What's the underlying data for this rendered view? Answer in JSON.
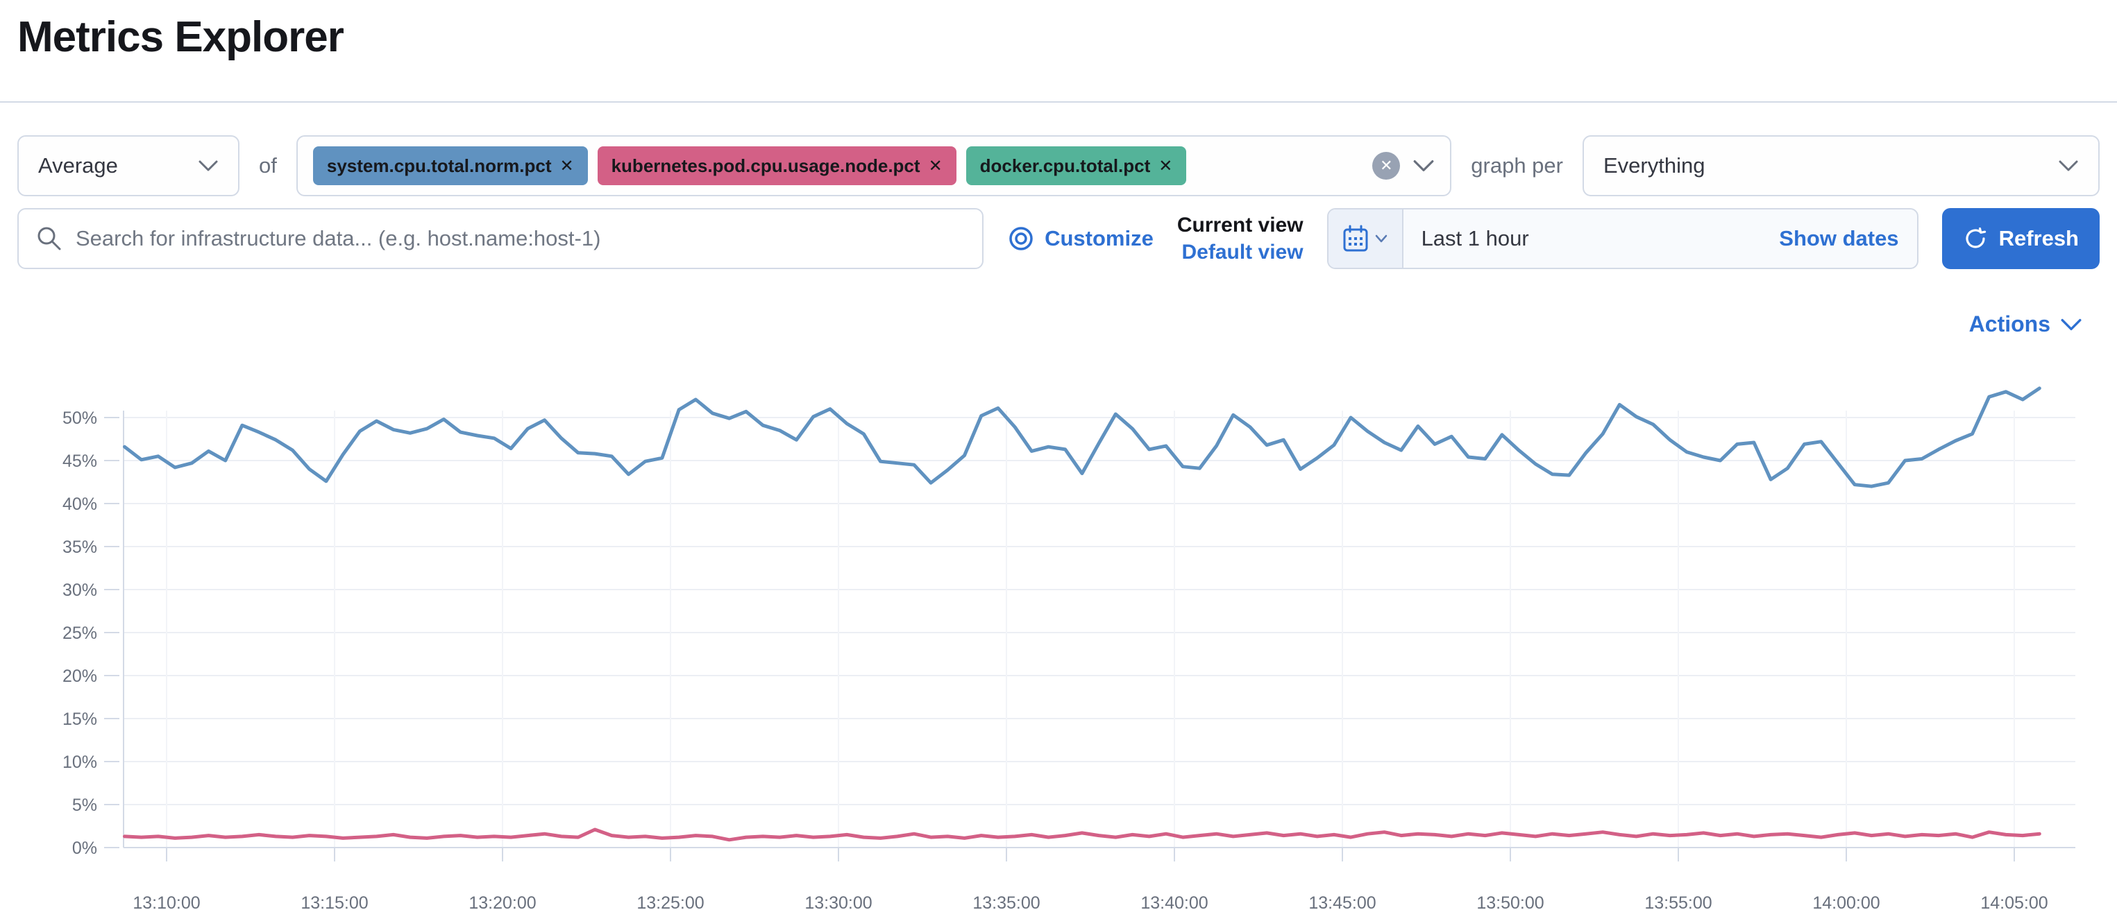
{
  "page_title": "Metrics Explorer",
  "toolbar": {
    "aggregation": {
      "value": "Average"
    },
    "of_label": "of",
    "metrics": [
      {
        "label": "system.cpu.total.norm.pct",
        "remove_label": "✕",
        "color": "#6092C0"
      },
      {
        "label": "kubernetes.pod.cpu.usage.node.pct",
        "remove_label": "✕",
        "color": "#D36086"
      },
      {
        "label": "docker.cpu.total.pct",
        "remove_label": "✕",
        "color": "#54B399"
      }
    ],
    "clear_all_label": "✕",
    "graph_per_label": "graph per",
    "group_by": {
      "value": "Everything"
    }
  },
  "search": {
    "placeholder": "Search for infrastructure data... (e.g. host.name:host-1)"
  },
  "view_controls": {
    "customize_label": "Customize",
    "current_view_label": "Current view",
    "default_view_label": "Default view"
  },
  "time_picker": {
    "range_label": "Last 1 hour",
    "show_dates_label": "Show dates",
    "refresh_label": "Refresh"
  },
  "actions_label": "Actions",
  "colors": {
    "accent_blue": "#2e70d2",
    "border": "#d3dae6",
    "muted_text": "#69707d",
    "series_blue": "#6092C0",
    "series_pink": "#D36086",
    "badge_green": "#54B399"
  },
  "chart_data": {
    "type": "line",
    "title": "",
    "xlabel": "",
    "ylabel": "",
    "ylim": [
      0,
      55
    ],
    "grid": true,
    "legend": "none",
    "y_ticks": [
      0,
      5,
      10,
      15,
      20,
      25,
      30,
      35,
      40,
      45,
      50
    ],
    "y_tick_suffix": "%",
    "x_ticks": [
      "13:10:00",
      "13:15:00",
      "13:20:00",
      "13:25:00",
      "13:30:00",
      "13:35:00",
      "13:40:00",
      "13:45:00",
      "13:50:00",
      "13:55:00",
      "14:00:00",
      "14:05:00"
    ],
    "x_tick_interval_sec": 300,
    "sample_interval_sec": 30,
    "start_offset_sec_before_first_tick": 75,
    "series": [
      {
        "name": "system.cpu.total.norm.pct",
        "color": "#6092C0",
        "values": [
          46.6,
          45.1,
          45.5,
          44.2,
          44.7,
          46.1,
          45.0,
          49.1,
          48.3,
          47.4,
          46.2,
          44.0,
          42.6,
          45.7,
          48.4,
          49.6,
          48.6,
          48.2,
          48.7,
          49.8,
          48.3,
          47.9,
          47.6,
          46.4,
          48.7,
          49.7,
          47.6,
          45.9,
          45.8,
          45.5,
          43.4,
          44.9,
          45.3,
          50.9,
          52.1,
          50.5,
          49.9,
          50.7,
          49.1,
          48.5,
          47.4,
          50.1,
          51.0,
          49.3,
          48.1,
          44.9,
          44.7,
          44.5,
          42.4,
          43.9,
          45.6,
          50.2,
          51.1,
          48.9,
          46.1,
          46.6,
          46.3,
          43.5,
          47.0,
          50.4,
          48.7,
          46.3,
          46.7,
          44.3,
          44.1,
          46.7,
          50.3,
          48.9,
          46.8,
          47.4,
          44.0,
          45.3,
          46.8,
          50.0,
          48.4,
          47.1,
          46.2,
          49.0,
          46.9,
          47.8,
          45.4,
          45.2,
          48.0,
          46.2,
          44.6,
          43.4,
          43.3,
          45.9,
          48.1,
          51.5,
          50.1,
          49.2,
          47.4,
          46.0,
          45.4,
          45.0,
          46.9,
          47.1,
          42.8,
          44.1,
          46.9,
          47.2,
          44.7,
          42.2,
          42.0,
          42.4,
          45.0,
          45.2,
          46.3,
          47.3,
          48.1,
          52.4,
          53.0,
          52.1,
          53.4
        ]
      },
      {
        "name": "kubernetes.pod.cpu.usage.node.pct",
        "color": "#D36086",
        "values": [
          1.3,
          1.2,
          1.3,
          1.1,
          1.2,
          1.4,
          1.2,
          1.3,
          1.5,
          1.3,
          1.2,
          1.4,
          1.3,
          1.1,
          1.2,
          1.3,
          1.5,
          1.2,
          1.1,
          1.3,
          1.4,
          1.2,
          1.3,
          1.2,
          1.4,
          1.6,
          1.3,
          1.2,
          2.1,
          1.4,
          1.2,
          1.3,
          1.1,
          1.2,
          1.4,
          1.3,
          0.9,
          1.2,
          1.3,
          1.2,
          1.4,
          1.2,
          1.3,
          1.5,
          1.2,
          1.1,
          1.3,
          1.6,
          1.2,
          1.3,
          1.1,
          1.4,
          1.2,
          1.3,
          1.5,
          1.2,
          1.4,
          1.7,
          1.4,
          1.2,
          1.5,
          1.3,
          1.6,
          1.2,
          1.4,
          1.6,
          1.3,
          1.5,
          1.7,
          1.4,
          1.6,
          1.3,
          1.5,
          1.2,
          1.6,
          1.8,
          1.4,
          1.6,
          1.5,
          1.3,
          1.6,
          1.4,
          1.7,
          1.5,
          1.3,
          1.6,
          1.4,
          1.6,
          1.8,
          1.5,
          1.3,
          1.6,
          1.4,
          1.5,
          1.7,
          1.4,
          1.6,
          1.3,
          1.5,
          1.6,
          1.4,
          1.2,
          1.5,
          1.7,
          1.4,
          1.6,
          1.3,
          1.5,
          1.4,
          1.6,
          1.2,
          1.8,
          1.5,
          1.4,
          1.6
        ]
      }
    ]
  }
}
